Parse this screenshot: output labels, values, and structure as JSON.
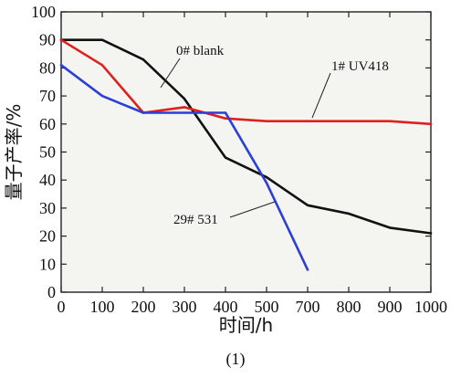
{
  "chart_data": {
    "type": "line",
    "title": "",
    "xlabel": "时间/h",
    "ylabel": "量子产率/%",
    "caption": "(1)",
    "xlim": [
      0,
      1000
    ],
    "ylim": [
      0,
      100
    ],
    "x_ticks": [
      0,
      100,
      200,
      300,
      400,
      500,
      700,
      800,
      900,
      1000
    ],
    "y_ticks": [
      0,
      10,
      20,
      30,
      40,
      50,
      60,
      70,
      80,
      90,
      100
    ],
    "grid": false,
    "series": [
      {
        "name": "0# blank",
        "color": "#111111",
        "x": [
          0,
          100,
          200,
          300,
          400,
          500,
          700,
          800,
          900,
          1000
        ],
        "y": [
          90,
          90,
          83,
          69,
          48,
          41,
          31,
          28,
          23,
          21
        ]
      },
      {
        "name": "1# UV418",
        "color": "#e02020",
        "x": [
          0,
          100,
          200,
          300,
          400,
          500,
          700,
          800,
          900,
          1000
        ],
        "y": [
          90,
          81,
          64,
          66,
          62,
          61,
          61,
          61,
          61,
          60
        ]
      },
      {
        "name": "29# 531",
        "color": "#2a3fd6",
        "x": [
          0,
          100,
          200,
          300,
          400,
          500,
          700
        ],
        "y": [
          81,
          70,
          64,
          64,
          64,
          39,
          8
        ]
      }
    ],
    "annotations": [
      {
        "text": "0# blank",
        "series": "0# blank"
      },
      {
        "text": "1# UV418",
        "series": "1# UV418"
      },
      {
        "text": "29# 531",
        "series": "29# 531"
      }
    ]
  }
}
